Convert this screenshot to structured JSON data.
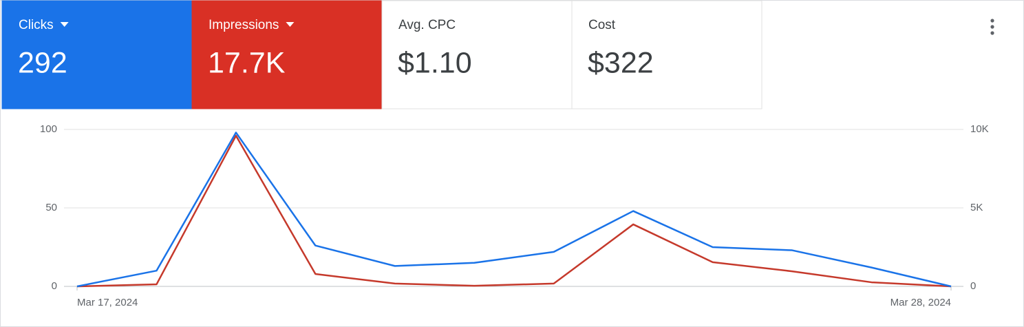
{
  "metrics": [
    {
      "label": "Clicks",
      "value": "292",
      "color": "#1a73e8",
      "dropdown": true
    },
    {
      "label": "Impressions",
      "value": "17.7K",
      "color": "#d93025",
      "dropdown": true
    },
    {
      "label": "Avg. CPC",
      "value": "$1.10",
      "color": "#ffffff",
      "dropdown": false
    },
    {
      "label": "Cost",
      "value": "$322",
      "color": "#ffffff",
      "dropdown": false
    }
  ],
  "chart_data": {
    "type": "line",
    "categories": [
      "Mar 17, 2024",
      null,
      null,
      null,
      null,
      null,
      null,
      null,
      null,
      null,
      null,
      "Mar 28, 2024"
    ],
    "series": [
      {
        "name": "Clicks",
        "color": "#1a73e8",
        "values": [
          0,
          10,
          98,
          26,
          13,
          15,
          22,
          48,
          25,
          23,
          12,
          0
        ]
      },
      {
        "name": "Impressions",
        "color": "#c5392b",
        "axis": "y2",
        "values": [
          0,
          130,
          9600,
          790,
          180,
          40,
          180,
          3950,
          1540,
          960,
          260,
          0
        ]
      }
    ],
    "ylim": [
      0,
      100
    ],
    "yticks": [
      0,
      50,
      100
    ],
    "y2lim": [
      0,
      10000
    ],
    "y2ticks": [
      0,
      {
        "value": 5000,
        "label": "5K"
      },
      {
        "value": 10000,
        "label": "10K"
      }
    ],
    "grid": true
  }
}
